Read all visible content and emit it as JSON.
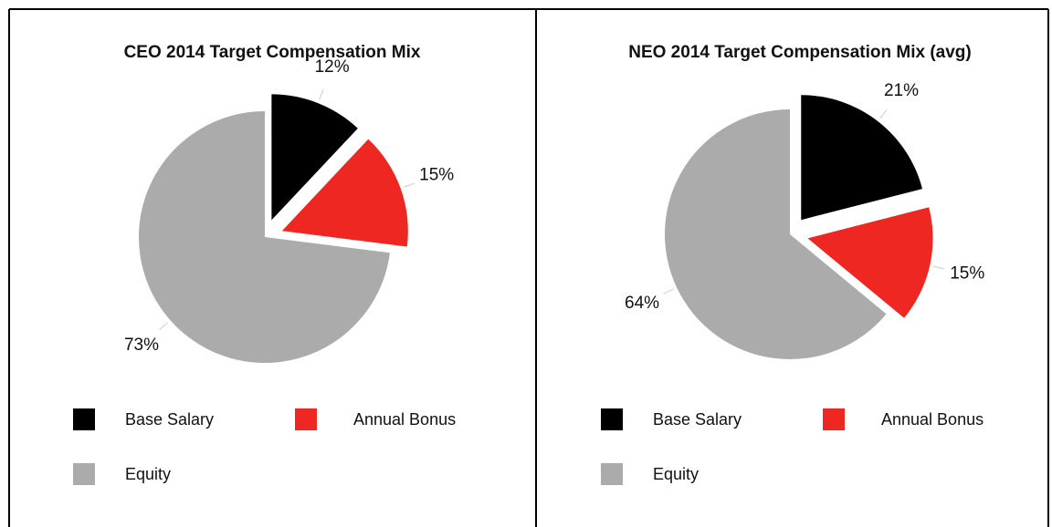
{
  "chart_data": [
    {
      "type": "pie",
      "title": "CEO 2014 Target Compensation Mix",
      "categories": [
        "Base Salary",
        "Annual Bonus",
        "Equity"
      ],
      "values": [
        12,
        15,
        73
      ],
      "value_labels": [
        "12%",
        "15%",
        "73%"
      ],
      "colors": [
        "#000000",
        "#ee2722",
        "#ababab"
      ]
    },
    {
      "type": "pie",
      "title": "NEO 2014 Target Compensation Mix (avg)",
      "categories": [
        "Base Salary",
        "Annual Bonus",
        "Equity"
      ],
      "values": [
        21,
        15,
        64
      ],
      "value_labels": [
        "21%",
        "15%",
        "64%"
      ],
      "colors": [
        "#000000",
        "#ee2722",
        "#ababab"
      ]
    }
  ]
}
